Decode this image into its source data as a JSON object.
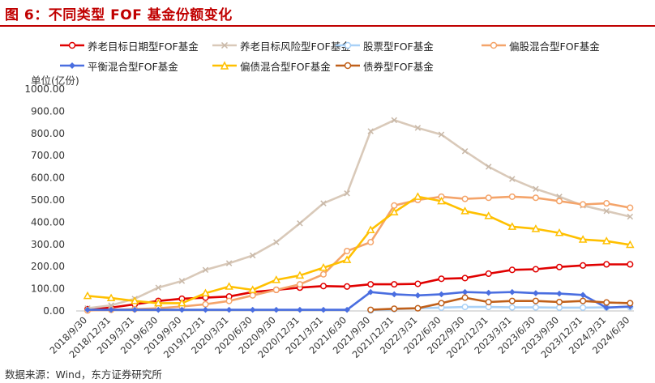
{
  "header": {
    "title": "图 6：不同类型 FOF 基金份额变化"
  },
  "footer": {
    "source": "数据来源：Wind，东方证券研究所"
  },
  "chart_data": {
    "type": "line",
    "ylabel": "单位(亿份)",
    "ylim": [
      0,
      1000
    ],
    "yticks": [
      "0.00",
      "100.00",
      "200.00",
      "300.00",
      "400.00",
      "500.00",
      "600.00",
      "700.00",
      "800.00",
      "900.00",
      "1000.00"
    ],
    "categories": [
      "2018/9/30",
      "2018/12/31",
      "2019/3/31",
      "2019/6/30",
      "2019/9/30",
      "2019/12/31",
      "2020/3/31",
      "2020/6/30",
      "2020/9/30",
      "2020/12/31",
      "2021/3/31",
      "2021/6/30",
      "2021/9/30",
      "2021/12/31",
      "2022/3/31",
      "2022/6/30",
      "2022/9/30",
      "2022/12/31",
      "2023/3/31",
      "2023/6/30",
      "2023/9/30",
      "2023/12/31",
      "2024/3/31",
      "2024/6/30"
    ],
    "grid": false,
    "legend_position": "top",
    "series": [
      {
        "name": "养老目标日期型FOF基金",
        "color": "#e00000",
        "marker": "circle",
        "values": [
          8,
          15,
          30,
          45,
          55,
          60,
          65,
          85,
          95,
          105,
          112,
          110,
          120,
          120,
          122,
          145,
          148,
          168,
          185,
          188,
          198,
          205,
          210,
          210
        ]
      },
      {
        "name": "养老目标风险型FOF基金",
        "color": "#d9c9b9",
        "marker": "x",
        "values": [
          12,
          25,
          55,
          105,
          135,
          185,
          215,
          250,
          310,
          395,
          485,
          530,
          810,
          860,
          825,
          795,
          720,
          650,
          595,
          550,
          515,
          475,
          450,
          425
        ]
      },
      {
        "name": "股票型FOF基金",
        "color": "#a9d1f7",
        "marker": "circle-open",
        "values": [
          null,
          null,
          null,
          null,
          null,
          null,
          null,
          null,
          null,
          null,
          null,
          null,
          2,
          8,
          12,
          15,
          18,
          18,
          16,
          16,
          15,
          15,
          16,
          17
        ]
      },
      {
        "name": "偏股混合型FOF基金",
        "color": "#f4a46a",
        "marker": "circle",
        "values": [
          2,
          5,
          8,
          12,
          20,
          30,
          45,
          70,
          95,
          120,
          165,
          270,
          310,
          475,
          500,
          515,
          505,
          510,
          515,
          510,
          495,
          480,
          485,
          465
        ]
      },
      {
        "name": "平衡混合型FOF基金",
        "color": "#4a6ee0",
        "marker": "diamond",
        "values": [
          5,
          5,
          5,
          5,
          5,
          5,
          5,
          5,
          5,
          5,
          5,
          5,
          85,
          75,
          70,
          75,
          85,
          82,
          85,
          80,
          78,
          72,
          15,
          20
        ]
      },
      {
        "name": "偏债混合型FOF基金",
        "color": "#ffc000",
        "marker": "triangle",
        "values": [
          68,
          58,
          45,
          35,
          35,
          80,
          110,
          95,
          140,
          160,
          195,
          230,
          365,
          445,
          515,
          495,
          450,
          428,
          380,
          370,
          352,
          322,
          315,
          298
        ]
      },
      {
        "name": "债券型FOF基金",
        "color": "#c0601a",
        "marker": "circle",
        "values": [
          null,
          null,
          null,
          null,
          null,
          null,
          null,
          null,
          null,
          null,
          null,
          null,
          5,
          10,
          12,
          35,
          60,
          40,
          45,
          45,
          40,
          45,
          38,
          35
        ]
      }
    ]
  }
}
